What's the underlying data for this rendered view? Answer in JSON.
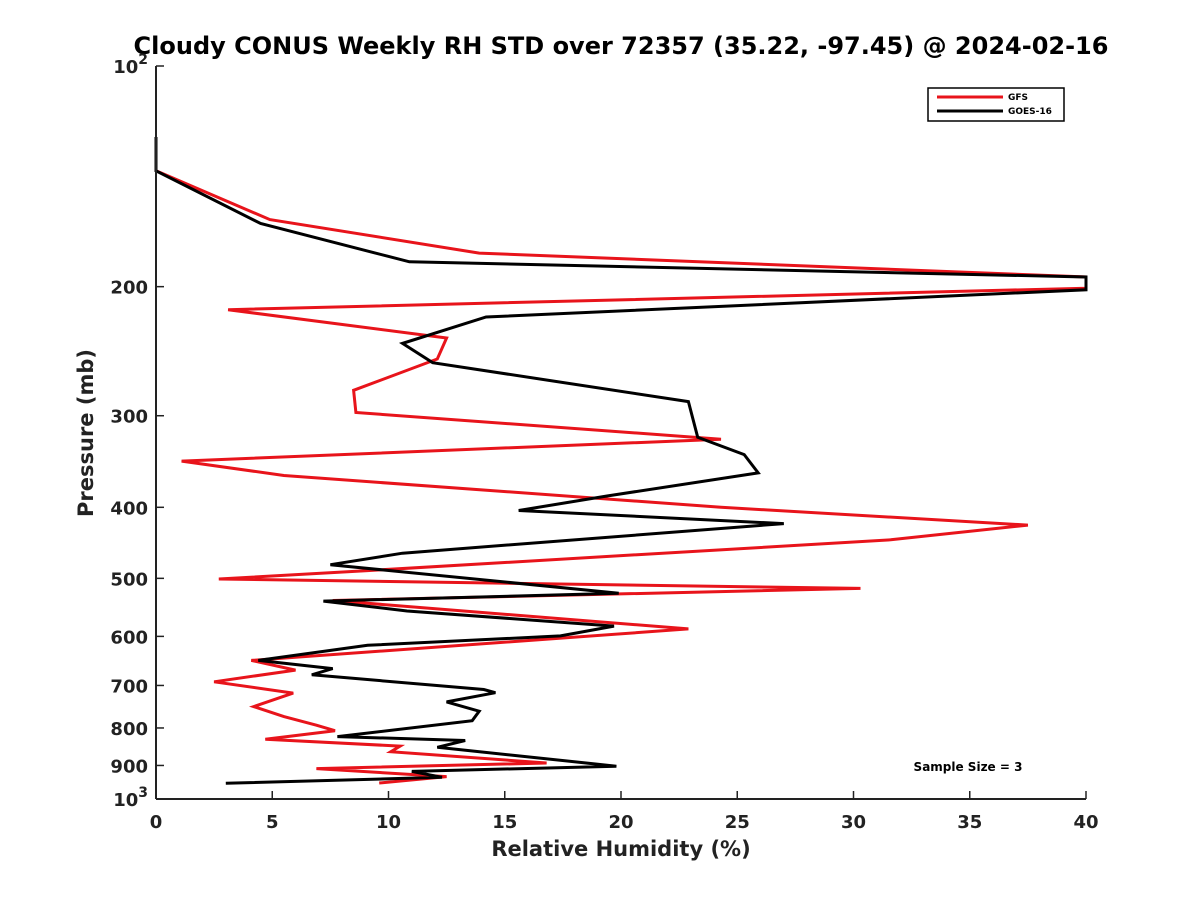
{
  "chart_data": {
    "type": "line",
    "title": "Cloudy CONUS Weekly RH STD over 72357 (35.22, -97.45) @ 2024-02-16",
    "xlabel": "Relative Humidity (%)",
    "ylabel": "Pressure (mb)",
    "xlim": [
      0,
      40
    ],
    "ylim": [
      100,
      1000
    ],
    "y_scale": "log",
    "y_reversed": true,
    "grid": false,
    "legend_position": "top-right",
    "x_ticks": [
      0,
      5,
      10,
      15,
      20,
      25,
      30,
      35,
      40
    ],
    "x_tick_labels": [
      "0",
      "5",
      "10",
      "15",
      "20",
      "25",
      "30",
      "35",
      "40"
    ],
    "y_ticks": [
      100,
      200,
      300,
      400,
      500,
      600,
      700,
      800,
      900,
      1000
    ],
    "y_tick_labels": [
      {
        "base": "10",
        "exp": "2"
      },
      {
        "base": "200",
        "exp": ""
      },
      {
        "base": "300",
        "exp": ""
      },
      {
        "base": "400",
        "exp": ""
      },
      {
        "base": "500",
        "exp": ""
      },
      {
        "base": "600",
        "exp": ""
      },
      {
        "base": "700",
        "exp": ""
      },
      {
        "base": "800",
        "exp": ""
      },
      {
        "base": "900",
        "exp": ""
      },
      {
        "base": "10",
        "exp": "3"
      }
    ],
    "annotation": "Sample Size = 3",
    "series": [
      {
        "name": "GFS",
        "color": "#e8141b",
        "points": [
          [
            0,
            125
          ],
          [
            0,
            139
          ],
          [
            4.9,
            162
          ],
          [
            13.9,
            180
          ],
          [
            40,
            194
          ],
          [
            40,
            201
          ],
          [
            3.1,
            215
          ],
          [
            12.5,
            235
          ],
          [
            12.1,
            251
          ],
          [
            8.5,
            277
          ],
          [
            8.6,
            297
          ],
          [
            24.3,
            323
          ],
          [
            1.1,
            346
          ],
          [
            5.5,
            362
          ],
          [
            24.3,
            400
          ],
          [
            37.5,
            423
          ],
          [
            31.6,
            443
          ],
          [
            9.1,
            488
          ],
          [
            2.7,
            501
          ],
          [
            30.3,
            516
          ],
          [
            7.6,
            536
          ],
          [
            22.9,
            586
          ],
          [
            17.5,
            603
          ],
          [
            4.1,
            647
          ],
          [
            6.0,
            667
          ],
          [
            2.5,
            692
          ],
          [
            5.9,
            717
          ],
          [
            4.2,
            748
          ],
          [
            5.5,
            772
          ],
          [
            6.9,
            793
          ],
          [
            7.7,
            807
          ],
          [
            4.7,
            829
          ],
          [
            10.5,
            847
          ],
          [
            10.1,
            862
          ],
          [
            16.8,
            893
          ],
          [
            6.9,
            909
          ],
          [
            12.5,
            932
          ],
          [
            9.6,
            951
          ]
        ]
      },
      {
        "name": "GOES-16",
        "color": "#000000",
        "points": [
          [
            0,
            125
          ],
          [
            0,
            139
          ],
          [
            4.5,
            164
          ],
          [
            10.9,
            185
          ],
          [
            40,
            194
          ],
          [
            40,
            202
          ],
          [
            14.2,
            220
          ],
          [
            10.6,
            239
          ],
          [
            11.9,
            254
          ],
          [
            22.9,
            287
          ],
          [
            23.3,
            321
          ],
          [
            25.3,
            339
          ],
          [
            25.9,
            359
          ],
          [
            19.4,
            386
          ],
          [
            15.6,
            404
          ],
          [
            27.0,
            421
          ],
          [
            10.6,
            462
          ],
          [
            7.5,
            479
          ],
          [
            19.9,
            524
          ],
          [
            7.2,
            537
          ],
          [
            10.8,
            554
          ],
          [
            19.7,
            581
          ],
          [
            17.4,
            599
          ],
          [
            9.1,
            617
          ],
          [
            4.4,
            647
          ],
          [
            7.6,
            664
          ],
          [
            6.7,
            677
          ],
          [
            14.1,
            709
          ],
          [
            14.6,
            716
          ],
          [
            12.5,
            737
          ],
          [
            13.9,
            759
          ],
          [
            13.6,
            782
          ],
          [
            7.8,
            822
          ],
          [
            13.3,
            832
          ],
          [
            12.1,
            850
          ],
          [
            15.7,
            874
          ],
          [
            19.8,
            902
          ],
          [
            11.0,
            917
          ],
          [
            12.3,
            934
          ],
          [
            3.0,
            952
          ]
        ]
      }
    ]
  }
}
